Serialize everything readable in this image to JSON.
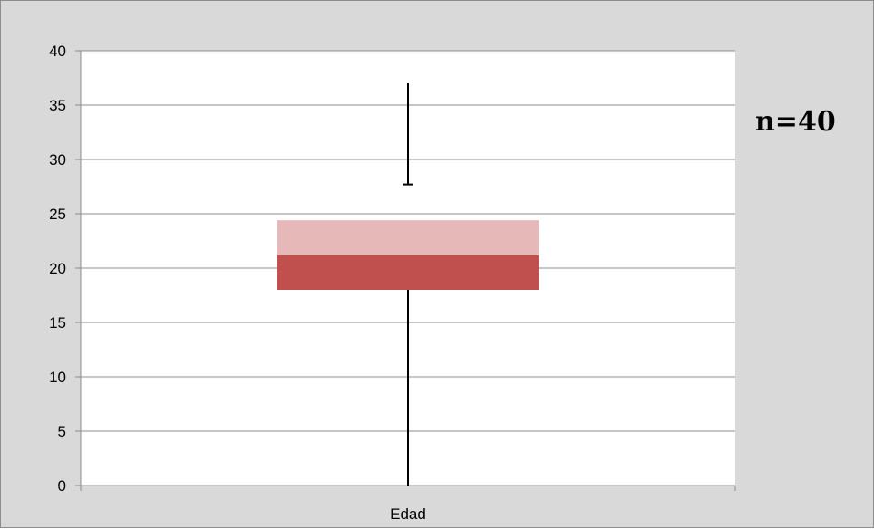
{
  "chart_data": {
    "type": "boxplot",
    "categories": [
      "Edad"
    ],
    "boxes": [
      {
        "category": "Edad",
        "min": 0,
        "q1": 18,
        "median": 21.2,
        "q3": 24.4,
        "max": 37,
        "upper_whisker_cap": 27.7
      }
    ],
    "ylim": [
      0,
      40
    ],
    "yticks": [
      0,
      5,
      10,
      15,
      20,
      25,
      30,
      35,
      40
    ],
    "grid": true,
    "annotation": "n=40",
    "colors": {
      "lower_box": "#c0504d",
      "upper_box": "#e6b9b8",
      "plot_background": "#ffffff",
      "chart_background": "#d9d9d9",
      "gridline": "#8c8c8c",
      "whisker": "#000000"
    }
  }
}
